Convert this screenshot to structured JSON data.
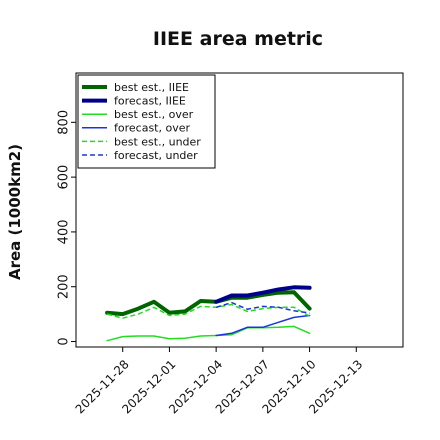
{
  "chart_data": {
    "type": "line",
    "title": "IIEE area metric",
    "xlabel": "",
    "ylabel": "Area (1000km2)",
    "ylim": [
      -20,
      980
    ],
    "yticks": [
      0,
      200,
      400,
      600,
      800
    ],
    "xlim": [
      "2025-11-25",
      "2025-12-16"
    ],
    "xticks": [
      "2025-11-28",
      "2025-12-01",
      "2025-12-04",
      "2025-12-07",
      "2025-12-10",
      "2025-12-13"
    ],
    "highlight_tick": "2025-12-04",
    "highlight_color": "#2e8b2e",
    "grid": false,
    "legend_position": "upper left",
    "x": [
      "2025-11-27",
      "2025-11-28",
      "2025-11-29",
      "2025-11-30",
      "2025-12-01",
      "2025-12-02",
      "2025-12-03",
      "2025-12-04",
      "2025-12-05",
      "2025-12-06",
      "2025-12-07",
      "2025-12-08",
      "2025-12-09",
      "2025-12-10"
    ],
    "series": [
      {
        "name": "best est., IIEE",
        "color": "#006400",
        "width": 4,
        "dash": "",
        "values": [
          105,
          100,
          120,
          145,
          105,
          110,
          148,
          145,
          160,
          160,
          170,
          178,
          180,
          120
        ]
      },
      {
        "name": "forecast, IIEE",
        "color": "#00008b",
        "width": 4,
        "dash": "",
        "values": [
          null,
          null,
          null,
          null,
          null,
          null,
          null,
          145,
          168,
          168,
          178,
          190,
          198,
          196
        ]
      },
      {
        "name": "best est., over",
        "color": "#22dd22",
        "width": 1.5,
        "dash": "",
        "values": [
          3,
          18,
          20,
          20,
          10,
          12,
          20,
          22,
          25,
          50,
          50,
          52,
          55,
          30
        ]
      },
      {
        "name": "forecast, over",
        "color": "#1a35e0",
        "width": 1.5,
        "dash": "",
        "values": [
          null,
          null,
          null,
          null,
          null,
          null,
          null,
          22,
          30,
          52,
          52,
          70,
          88,
          95
        ]
      },
      {
        "name": "best est., under",
        "color": "#22dd22",
        "width": 1.5,
        "dash": "5,3",
        "values": [
          100,
          85,
          100,
          125,
          95,
          100,
          128,
          125,
          135,
          110,
          120,
          125,
          125,
          92
        ]
      },
      {
        "name": "forecast, under",
        "color": "#1a35e0",
        "width": 1.5,
        "dash": "5,3",
        "values": [
          null,
          null,
          null,
          null,
          null,
          null,
          null,
          125,
          142,
          118,
          128,
          125,
          112,
          104
        ]
      }
    ]
  }
}
